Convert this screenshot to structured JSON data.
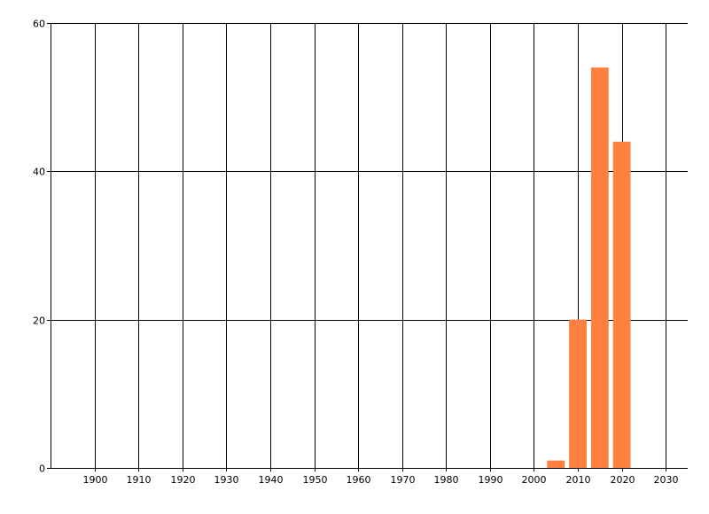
{
  "chart_data": {
    "type": "bar",
    "title": "",
    "xlabel": "",
    "ylabel": "",
    "x": [
      2005,
      2010,
      2015,
      2020
    ],
    "values": [
      1,
      20,
      54,
      44
    ],
    "bar_width_years": 4,
    "xlim": [
      1890,
      2035
    ],
    "ylim": [
      0,
      60
    ],
    "xticks": [
      1900,
      1910,
      1920,
      1930,
      1940,
      1950,
      1960,
      1970,
      1980,
      1990,
      2000,
      2010,
      2020,
      2030
    ],
    "yticks": [
      0,
      20,
      40,
      60
    ],
    "grid": true,
    "bar_color": "#ff8040",
    "grid_color": "#000000"
  }
}
